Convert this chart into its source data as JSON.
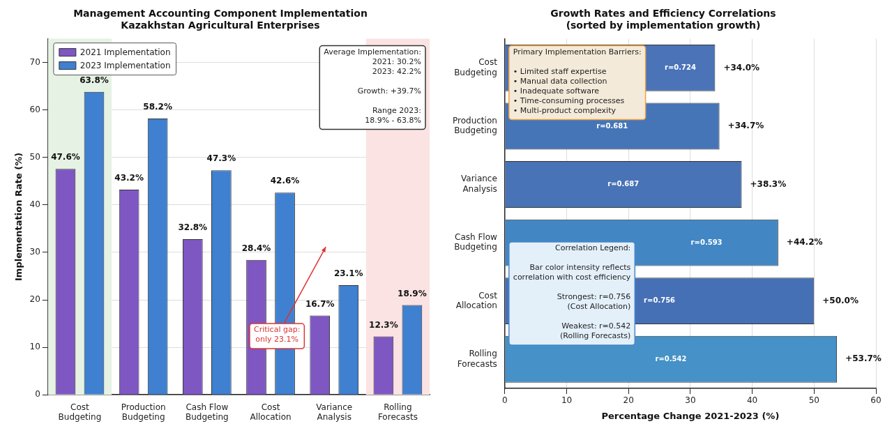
{
  "chart_data": [
    {
      "type": "bar",
      "title": "Management Accounting Component Implementation\nKazakhstan Agricultural Enterprises",
      "ylabel": "Implementation Rate (%)",
      "categories": [
        "Cost Budgeting",
        "Production Budgeting",
        "Cash Flow Budgeting",
        "Cost Allocation",
        "Variance Analysis",
        "Rolling Forecasts"
      ],
      "series": [
        {
          "name": "2021 Implementation",
          "color": "#7e57c2",
          "values": [
            47.6,
            43.2,
            32.8,
            28.4,
            16.7,
            12.3
          ],
          "value_labels": [
            "47.6%",
            "43.2%",
            "32.8%",
            "28.4%",
            "16.7%",
            "12.3%"
          ]
        },
        {
          "name": "2023 Implementation",
          "color": "#3f80d0",
          "values": [
            63.8,
            58.2,
            47.3,
            42.6,
            23.1,
            18.9
          ],
          "value_labels": [
            "63.8%",
            "58.2%",
            "47.3%",
            "42.6%",
            "23.1%",
            "18.9%"
          ]
        }
      ],
      "ylim": [
        0,
        75
      ],
      "yticks": [
        0,
        10,
        20,
        30,
        40,
        50,
        60,
        70
      ],
      "grid": "y",
      "legend": "top left",
      "bands": [
        {
          "axis": "x",
          "from": "Cost Budgeting",
          "to": "Cost Budgeting",
          "color": "#e6f2e3"
        },
        {
          "axis": "x",
          "from": "Rolling Forecasts",
          "to": "Rolling Forecasts",
          "color": "#fbe3e3"
        }
      ],
      "annotations": [
        "Average Implementation:\n2021: 30.2%\n2023: 42.2%\n\nGrowth: +39.7%\n\nRange 2023:\n18.9% - 63.8%",
        "Critical gap:\nonly 23.1%"
      ]
    },
    {
      "type": "bar",
      "orientation": "horizontal",
      "title": "Growth Rates and Efficiency Correlations\n(sorted by implementation growth)",
      "xlabel": "Percentage Change 2021-2023 (%)",
      "categories": [
        "Cost Budgeting",
        "Production Budgeting",
        "Variance Analysis",
        "Cash Flow Budgeting",
        "Cost Allocation",
        "Rolling Forecasts"
      ],
      "values": [
        34.0,
        34.7,
        38.3,
        44.2,
        50.0,
        53.7
      ],
      "colors": [
        "#4a73b8",
        "#4675b7",
        "#4873b6",
        "#4287c4",
        "#4670b6",
        "#4591c8"
      ],
      "value_labels": [
        "+34.0%",
        "+34.7%",
        "+38.3%",
        "+44.2%",
        "+50.0%",
        "+53.7%"
      ],
      "xlim": [
        0,
        60
      ],
      "xticks": [
        0,
        10,
        20,
        30,
        40,
        50,
        60
      ],
      "grid": "x",
      "annotations": [
        "Primary Implementation Barriers:\n\n• Limited staff expertise\n• Manual data collection\n• Inadequate software\n• Time-consuming processes\n• Multi-product complexity",
        "Correlation Legend:\n\nBar color intensity reflects\ncorrelation with cost efficiency\n\nStrongest: r=0.756\n(Cost Allocation)\n\nWeakest: r=0.542\n(Rolling Forecasts)",
        {
          "text": "r=0.724",
          "y": "Cost Budgeting"
        },
        {
          "text": "r=0.681",
          "y": "Production Budgeting"
        },
        {
          "text": "r=0.687",
          "y": "Variance Analysis"
        },
        {
          "text": "r=0.593",
          "y": "Cash Flow Budgeting"
        },
        {
          "text": "r=0.756",
          "y": "Cost Allocation"
        },
        {
          "text": "r=0.542",
          "y": "Rolling Forecasts"
        }
      ]
    }
  ]
}
